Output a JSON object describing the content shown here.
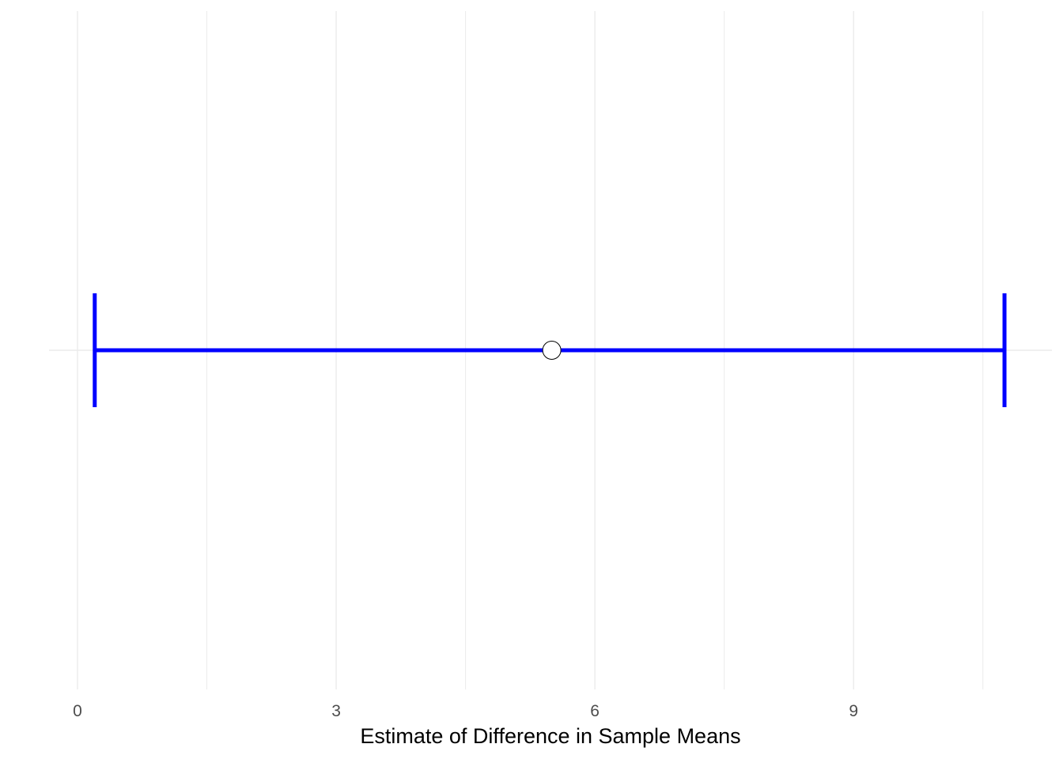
{
  "chart_data": {
    "type": "errorbar",
    "title": "",
    "xlabel": "Estimate of Difference in Sample Means",
    "ylabel": "",
    "xlim": [
      -0.33,
      11.3
    ],
    "x_ticks": [
      0,
      3,
      6,
      9
    ],
    "x_tick_labels": [
      "0",
      "3",
      "6",
      "9"
    ],
    "x_minor_gridlines": [
      1.5,
      4.5,
      7.5,
      10.5
    ],
    "grid": true,
    "legend": "none",
    "estimate": 5.5,
    "ci_lower": 0.2,
    "ci_upper": 10.75,
    "colors": {
      "interval": "#0000ff",
      "point_fill": "#ffffff",
      "point_stroke": "#000000",
      "grid": "#ebebeb"
    }
  }
}
